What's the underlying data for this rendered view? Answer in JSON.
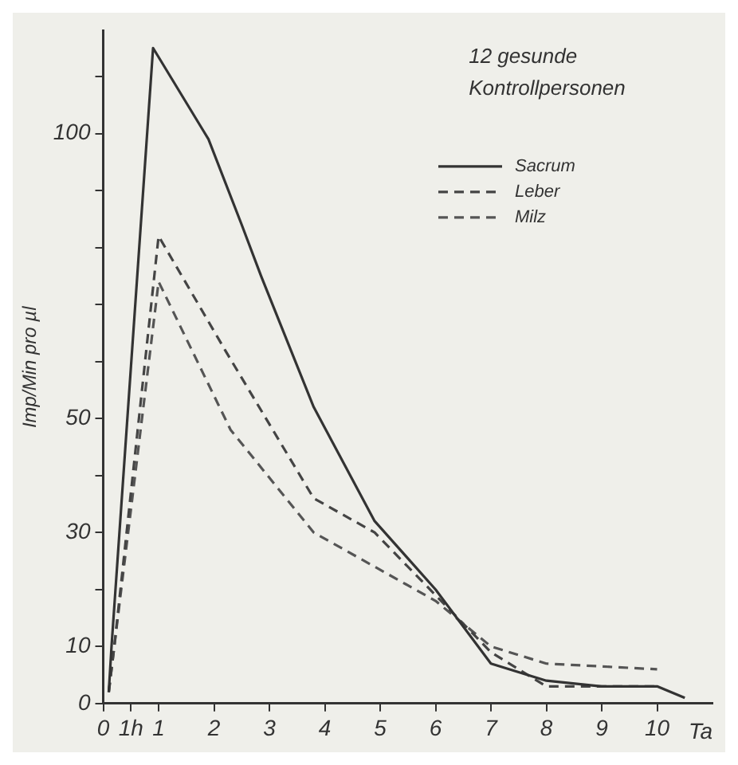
{
  "chart_data": {
    "type": "line",
    "xlabel": "Ta",
    "ylabel": "Imp/Min pro µl",
    "annotations": [
      "12 gesunde Kontrollpersonen"
    ],
    "xlim": [
      0,
      11
    ],
    "xticks": [
      0,
      {
        "value": 0.5,
        "label": "1h"
      },
      1,
      2,
      3,
      4,
      5,
      6,
      7,
      8,
      9,
      10
    ],
    "ylim": [
      0,
      118
    ],
    "yticks": [
      0,
      10,
      {
        "value": 20,
        "label": null
      },
      30,
      {
        "value": 40,
        "label": null
      },
      50,
      {
        "value": 60,
        "label": null
      },
      {
        "value": 70,
        "label": null
      },
      {
        "value": 80,
        "label": null
      },
      {
        "value": 90,
        "label": null
      },
      100,
      {
        "value": 110,
        "label": null
      }
    ],
    "grid": false,
    "legend": "top right",
    "marker": "none",
    "series": [
      {
        "name": "Sacrum",
        "color": "#333333",
        "line_style": "solid",
        "x": [
          0.1,
          0.15,
          0.9,
          1.9,
          2.5,
          2.85,
          3.8,
          4.9,
          6,
          7,
          8,
          9,
          10,
          10.5
        ],
        "values": [
          2,
          10,
          115,
          99,
          84,
          75,
          52,
          32,
          20,
          7,
          4,
          3,
          3,
          1
        ]
      },
      {
        "name": "Leber",
        "color": "#444444",
        "line_style": "dashed",
        "x": [
          0.1,
          0.2,
          1,
          2.2,
          3.8,
          4.9,
          6,
          7,
          8,
          9,
          10
        ],
        "values": [
          2,
          10,
          82,
          62,
          36,
          30,
          19,
          9,
          3,
          3,
          3
        ]
      },
      {
        "name": "Milz",
        "color": "#555555",
        "line_style": "dashed",
        "x": [
          0.1,
          0.2,
          1,
          2.3,
          3.8,
          4.9,
          6,
          7,
          8,
          9,
          10
        ],
        "values": [
          2,
          10,
          74,
          48,
          30,
          24,
          18,
          10,
          7,
          6.5,
          6
        ]
      }
    ]
  }
}
